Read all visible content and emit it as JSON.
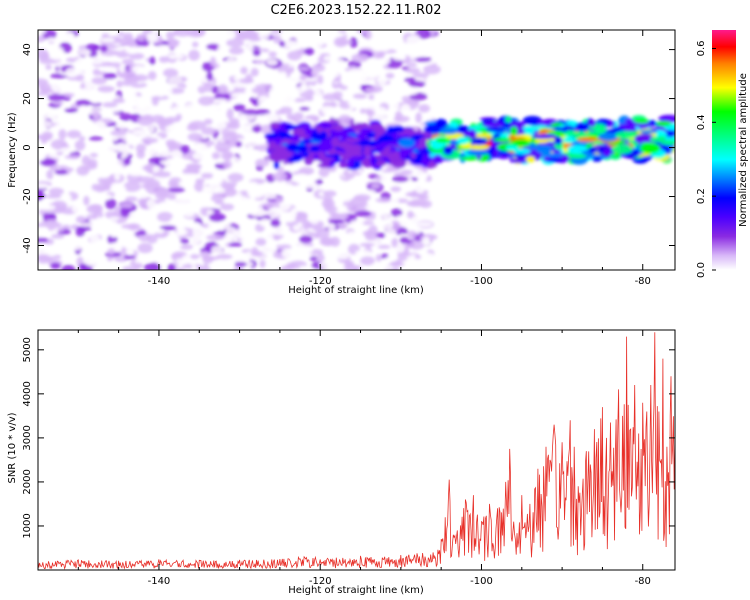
{
  "title": "C2E6.2023.152.22.11.R02",
  "chart_data": [
    {
      "type": "heatmap",
      "xlabel": "Height of straight line (km)",
      "ylabel": "Frequency (Hz)",
      "xlim": [
        -155,
        -76
      ],
      "ylim": [
        -50,
        48
      ],
      "x_ticks": [
        -140,
        -120,
        -100,
        -80
      ],
      "y_ticks": [
        -40,
        -20,
        0,
        20,
        40
      ],
      "colorbar": {
        "label": "Normalized spectral amplitude",
        "range": [
          0,
          0.65
        ],
        "ticks": [
          0.0,
          0.2,
          0.4,
          0.6
        ],
        "colormap": [
          "#ffffff",
          "#d8b8f8",
          "#8a2be2",
          "#5a00ff",
          "#0000ff",
          "#0080ff",
          "#00ffff",
          "#00ff80",
          "#00ff00",
          "#ffff00",
          "#ff8000",
          "#ff0000",
          "#ff1a8c"
        ]
      },
      "regions": [
        {
          "x_range": [
            -155,
            -106
          ],
          "freq_range": [
            -50,
            48
          ],
          "amplitude": [
            0.0,
            0.1
          ],
          "description_note": ""
        },
        {
          "x_range": [
            -126,
            -106
          ],
          "freq_range": [
            -8,
            10
          ],
          "amplitude": [
            0.1,
            0.28
          ]
        },
        {
          "x_range": [
            -106,
            -76
          ],
          "freq_range": [
            -6,
            12
          ],
          "amplitude": [
            0.15,
            0.6
          ]
        }
      ],
      "grid": false
    },
    {
      "type": "line",
      "xlabel": "Height of straight line (km)",
      "ylabel": "SNR (10 * v/v)",
      "xlim": [
        -155,
        -76
      ],
      "ylim": [
        0,
        5450
      ],
      "x_ticks": [
        -140,
        -120,
        -100,
        -80
      ],
      "y_ticks": [
        1000,
        2000,
        3000,
        4000,
        5000
      ],
      "color": "#e8312a",
      "grid": false,
      "series": [
        {
          "x": [
            -155,
            -150,
            -145,
            -140,
            -135,
            -130,
            -125,
            -122,
            -118,
            -115,
            -112,
            -110,
            -108,
            -106,
            -105,
            -104.5,
            -104,
            -103.5,
            -103,
            -102,
            -101,
            -100,
            -99,
            -98,
            -97,
            -96.5,
            -96,
            -95,
            -94,
            -93,
            -92,
            -91.5,
            -91,
            -90,
            -89,
            -88.5,
            -88,
            -87,
            -86,
            -85,
            -84.5,
            -84,
            -83,
            -82.5,
            -82,
            -81.5,
            -81,
            -80.5,
            -80,
            -79.5,
            -79,
            -78.5,
            -78,
            -77.5,
            -77,
            -76.5,
            -76
          ],
          "y": [
            200,
            230,
            210,
            240,
            220,
            230,
            250,
            300,
            280,
            320,
            300,
            340,
            380,
            400,
            700,
            1200,
            2050,
            800,
            900,
            1600,
            1700,
            1100,
            1500,
            1400,
            2000,
            2750,
            1100,
            1700,
            1500,
            2300,
            2800,
            2500,
            3300,
            2900,
            3400,
            2800,
            1900,
            2700,
            3200,
            3700,
            3000,
            3350,
            4100,
            3500,
            5300,
            3200,
            4200,
            3100,
            3800,
            3600,
            4200,
            5400,
            3600,
            4800,
            2800,
            4400,
            3000
          ]
        }
      ]
    }
  ]
}
